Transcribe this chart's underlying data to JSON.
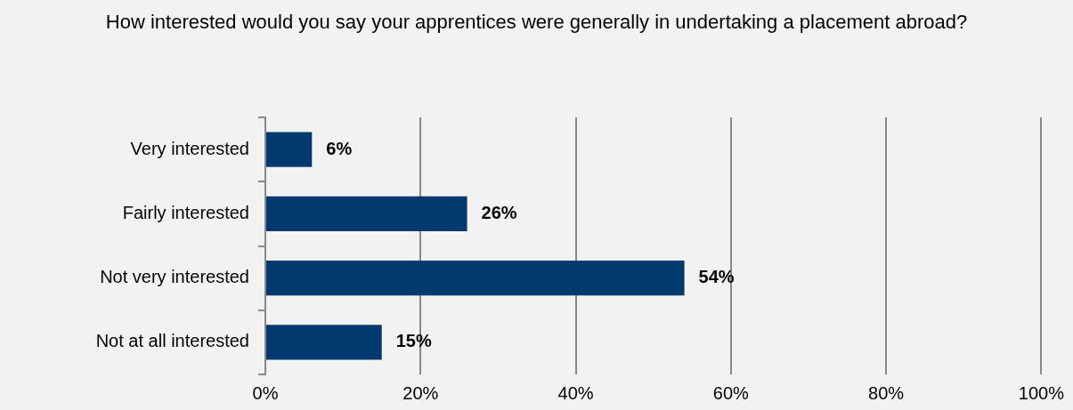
{
  "chart_data": {
    "type": "bar",
    "orientation": "horizontal",
    "title": "How interested would you say your apprentices were generally in undertaking a placement abroad?",
    "categories": [
      "Very interested",
      "Fairly interested",
      "Not very interested",
      "Not at all interested"
    ],
    "values": [
      6,
      26,
      54,
      15
    ],
    "color": "#003a6e",
    "value_labels": [
      "6%",
      "26%",
      "54%",
      "15%"
    ],
    "xlim": [
      0,
      100
    ],
    "xticks": [
      {
        "value": 0,
        "label": "0%"
      },
      {
        "value": 20,
        "label": "20%"
      },
      {
        "value": 40,
        "label": "40%"
      },
      {
        "value": 60,
        "label": "60%"
      },
      {
        "value": 80,
        "label": "80%"
      },
      {
        "value": 100,
        "label": "100%"
      }
    ],
    "grid": "x",
    "legend": false
  }
}
